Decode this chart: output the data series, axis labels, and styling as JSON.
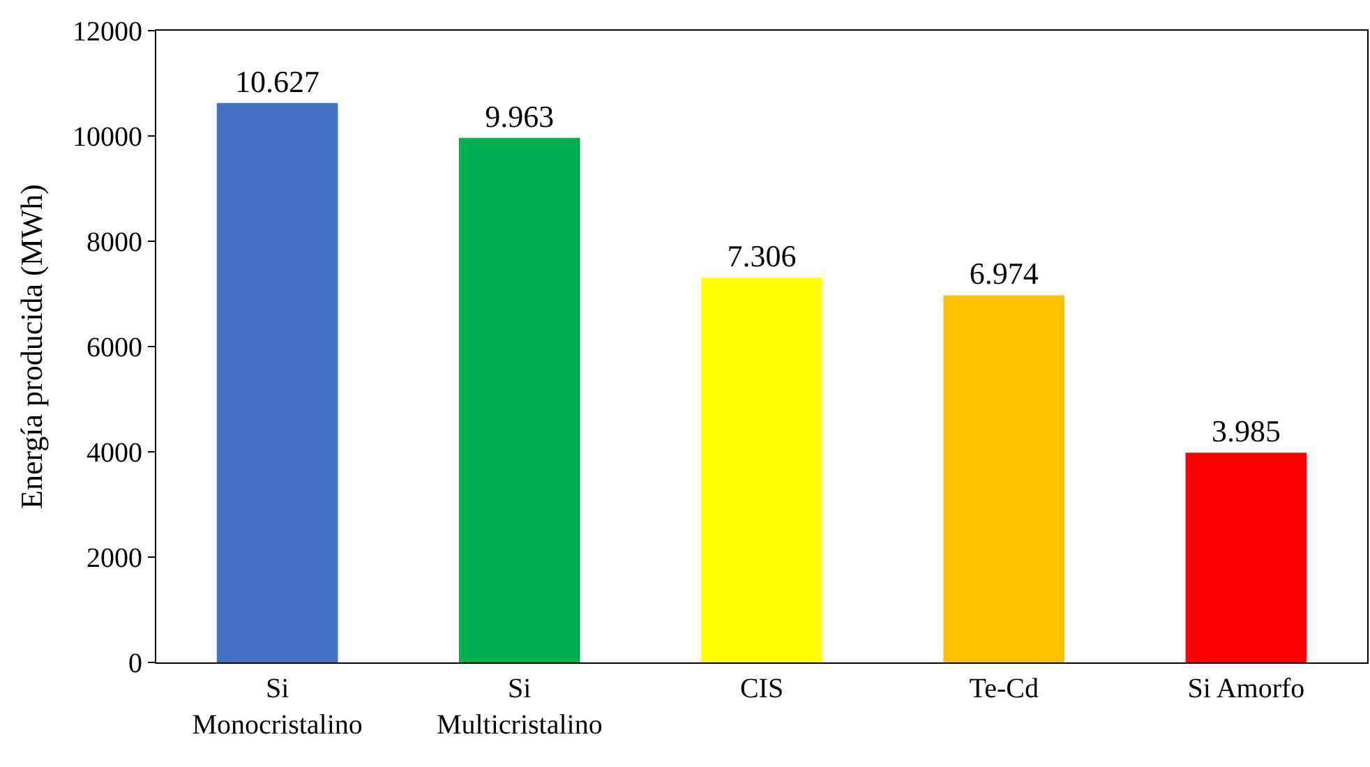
{
  "chart_data": {
    "type": "bar",
    "ylabel": "Energía producida (MWh)",
    "categories": [
      "Si\nMonocristalino",
      "Si\nMulticristalino",
      "CIS",
      "Te-Cd",
      "Si Amorfo"
    ],
    "values": [
      10627,
      9963,
      7306,
      6974,
      3985
    ],
    "value_labels": [
      "10.627",
      "9.963",
      "7.306",
      "6.974",
      "3.985"
    ],
    "colors": [
      "#4472c4",
      "#00b050",
      "#ffff00",
      "#ffc000",
      "#ff0000"
    ],
    "ylim": [
      0,
      12000
    ],
    "yticks": [
      0,
      2000,
      4000,
      6000,
      8000,
      10000,
      12000
    ],
    "tick_labels": [
      "x",
      "y"
    ]
  }
}
